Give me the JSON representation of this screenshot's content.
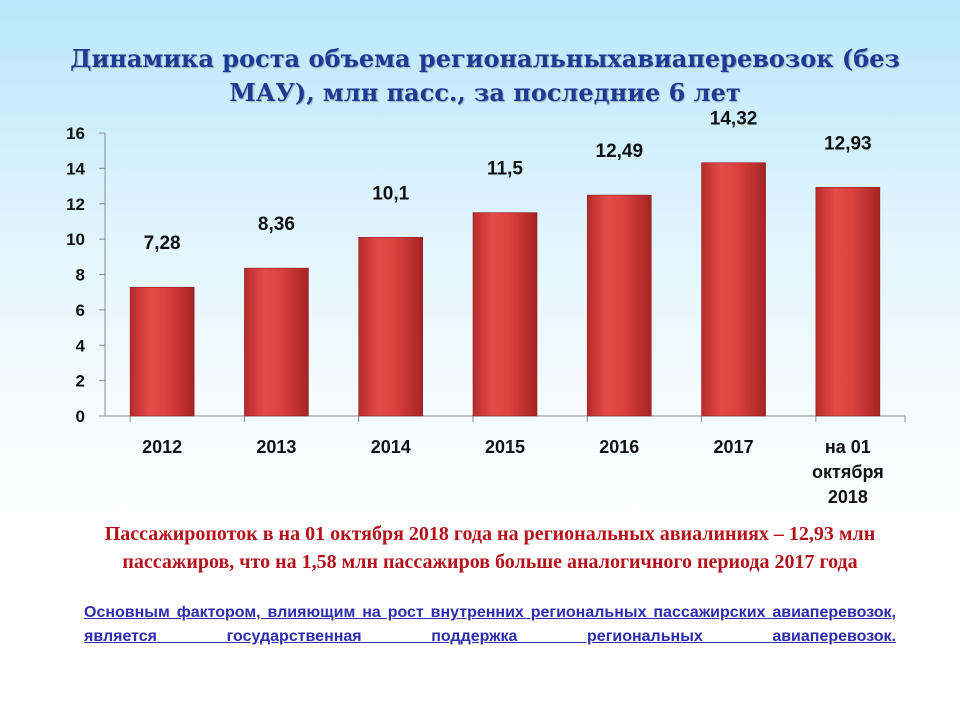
{
  "title": "Динамика роста объема региональныхавиаперевозок (без МАУ), млн пасс., за последние 6 лет",
  "chart_data": {
    "type": "bar",
    "categories": [
      "2012",
      "2013",
      "2014",
      "2015",
      "2016",
      "2017",
      "на 01 октября 2018"
    ],
    "values": [
      7.28,
      8.36,
      10.1,
      11.5,
      12.49,
      14.32,
      12.93
    ],
    "data_labels": [
      "7,28",
      "8,36",
      "10,1",
      "11,5",
      "12,49",
      "14,32",
      "12,93"
    ],
    "yticks": [
      0,
      2,
      4,
      6,
      8,
      10,
      12,
      14,
      16
    ],
    "ylim": [
      0,
      16
    ],
    "grid": false,
    "legend": "none",
    "bar_color": "#d9403f"
  },
  "summary": "Пассажиропоток в на 01 октября 2018 года на региональных авиалиниях – 12,93 млн пассажиров, что на 1,58 млн пассажиров больше аналогичного периода 2017 года",
  "note": "Основным фактором, влияющим на рост внутренних региональных пассажирских авиаперевозок, является государственная поддержка региональных авиаперевозок."
}
